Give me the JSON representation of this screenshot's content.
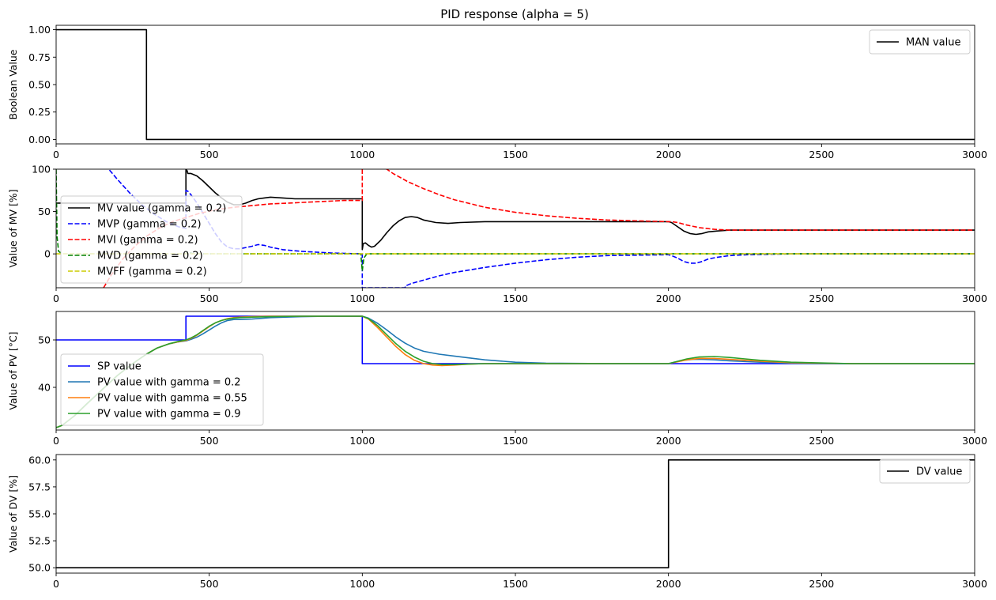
{
  "chart_data": {
    "type": "line",
    "title": "PID response (alpha = 5)",
    "panels": [
      {
        "ylabel": "Boolean Value",
        "xlim": [
          0,
          3000
        ],
        "ylim": [
          -0.04,
          1.04
        ],
        "x_ticks": [
          0,
          500,
          1000,
          1500,
          2000,
          2500,
          3000
        ],
        "y_ticks": [
          0.0,
          0.25,
          0.5,
          0.75,
          1.0
        ],
        "y_tick_labels": [
          "0.00",
          "0.25",
          "0.50",
          "0.75",
          "1.00"
        ],
        "legend_position": "upper right",
        "series": [
          {
            "name": "MAN value",
            "color": "#000000",
            "dash": "solid",
            "x": [
              0,
              295,
              295,
              3000
            ],
            "y": [
              1,
              1,
              0,
              0
            ]
          }
        ]
      },
      {
        "ylabel": "Value of MV [%]",
        "xlim": [
          0,
          3000
        ],
        "ylim": [
          -40,
          100
        ],
        "x_ticks": [
          0,
          500,
          1000,
          1500,
          2000,
          2500,
          3000
        ],
        "y_ticks": [
          0,
          50,
          100
        ],
        "y_tick_labels": [
          "0",
          "50",
          "100"
        ],
        "legend_position": "lower left",
        "series": [
          {
            "name": "MV value (gamma = 0.2)",
            "color": "#000000",
            "dash": "solid",
            "x": [
              0,
              295,
              295,
              424,
              424,
              428,
              430,
              440,
              460,
              480,
              500,
              520,
              540,
              560,
              580,
              600,
              620,
              640,
              660,
              680,
              700,
              740,
              780,
              840,
              900,
              960,
              1000,
              1000,
              1003,
              1010,
              1020,
              1030,
              1040,
              1060,
              1080,
              1100,
              1120,
              1140,
              1160,
              1180,
              1200,
              1240,
              1280,
              1320,
              1400,
              1600,
              1800,
              2000,
              2010,
              2030,
              2050,
              2070,
              2090,
              2110,
              2130,
              2160,
              2200,
              2260,
              2400,
              2600,
              3000
            ],
            "y": [
              60,
              60,
              60,
              60,
              100,
              98,
              95,
              95,
              92,
              86,
              79,
              72,
              66,
              61,
              58,
              58,
              60,
              63,
              65,
              66,
              67,
              66,
              65,
              65,
              65,
              65,
              65,
              5,
              12,
              13,
              10,
              8,
              9,
              16,
              25,
              33,
              39,
              43,
              44,
              43,
              40,
              37,
              36,
              37,
              38,
              38,
              38,
              38,
              37,
              32,
              27,
              24,
              23,
              24,
              26,
              27,
              28,
              28,
              28,
              28,
              28
            ]
          },
          {
            "name": "MVP (gamma = 0.2)",
            "color": "#0000ff",
            "dash": "dashed",
            "x": [
              160,
              200,
              240,
              280,
              320,
              360,
              400,
              424,
              424,
              430,
              440,
              460,
              480,
              500,
              520,
              540,
              560,
              580,
              600,
              640,
              660,
              680,
              700,
              740,
              800,
              900,
              1000,
              1000,
              1040,
              1080,
              1100,
              1140,
              1140,
              1160,
              1200,
              1250,
              1300,
              1400,
              1500,
              1600,
              1700,
              1800,
              2000,
              2010,
              2030,
              2050,
              2070,
              2090,
              2110,
              2130,
              2160,
              2200,
              2260,
              2400,
              2600,
              3000
            ],
            "y": [
              105,
              88,
              72,
              58,
              47,
              38,
              32,
              30,
              75,
              74,
              70,
              60,
              48,
              36,
              24,
              14,
              8,
              6,
              6,
              9,
              11,
              10,
              8,
              5,
              3,
              1,
              0,
              -40,
              -40,
              -40,
              -40,
              -40,
              -38,
              -35,
              -31,
              -26,
              -22,
              -16,
              -11,
              -7,
              -4,
              -2,
              -1,
              -2,
              -5,
              -9,
              -11,
              -11,
              -9,
              -6,
              -4,
              -2,
              -1,
              0,
              0,
              0
            ]
          },
          {
            "name": "MVI (gamma = 0.2)",
            "color": "#ff0000",
            "dash": "dashed",
            "x": [
              155,
              180,
              220,
              260,
              300,
              340,
              380,
              424,
              470,
              520,
              580,
              640,
              700,
              760,
              820,
              880,
              940,
              1000,
              1000,
              1010,
              1020,
              1050,
              1080,
              1100,
              1150,
              1200,
              1250,
              1300,
              1400,
              1500,
              1600,
              1700,
              1800,
              1900,
              2000,
              2010,
              2030,
              2060,
              2100,
              2150,
              2200,
              2300,
              2400,
              2600,
              3000
            ],
            "y": [
              -40,
              -25,
              -5,
              10,
              22,
              31,
              38,
              43,
              48,
              52,
              55,
              57,
              59,
              60,
              61,
              62,
              63,
              63,
              100,
              110,
              120,
              106,
              100,
              95,
              85,
              77,
              70,
              64,
              55,
              49,
              45,
              42,
              40,
              39,
              38,
              38,
              37,
              34,
              31,
              29,
              28,
              28,
              28,
              28,
              28
            ]
          },
          {
            "name": "MVD (gamma = 0.2)",
            "color": "#008000",
            "dash": "dashed",
            "x": [
              0,
              3,
              8,
              20,
              424,
              430,
              450,
              995,
              1000,
              1005,
              1015,
              1030,
              2000,
              3000
            ],
            "y": [
              100,
              20,
              3,
              0,
              0,
              2,
              0,
              0,
              -20,
              -5,
              0,
              0,
              0,
              0
            ]
          },
          {
            "name": "MVFF (gamma = 0.2)",
            "color": "#cccc00",
            "dash": "dashed",
            "x": [
              0,
              3000
            ],
            "y": [
              0,
              0
            ]
          }
        ]
      },
      {
        "ylabel": "Value of PV [°C]",
        "xlim": [
          0,
          3000
        ],
        "ylim": [
          31,
          56
        ],
        "x_ticks": [
          0,
          500,
          1000,
          1500,
          2000,
          2500,
          3000
        ],
        "y_ticks": [
          40,
          50
        ],
        "y_tick_labels": [
          "40",
          "50"
        ],
        "legend_position": "lower left",
        "series": [
          {
            "name": "SP value",
            "color": "#0000ff",
            "dash": "solid",
            "x": [
              0,
              424,
              424,
              1000,
              1000,
              3000
            ],
            "y": [
              50,
              50,
              55,
              55,
              45,
              45
            ]
          },
          {
            "name": "PV value with gamma = 0.2",
            "color": "#1f77b4",
            "dash": "solid",
            "x": [
              0,
              20,
              60,
              100,
              150,
              200,
              250,
              295,
              330,
              370,
              400,
              424,
              440,
              460,
              480,
              500,
              520,
              540,
              560,
              580,
              600,
              640,
              700,
              800,
              900,
              1000,
              1020,
              1050,
              1080,
              1110,
              1140,
              1170,
              1200,
              1250,
              1300,
              1400,
              1500,
              1600,
              1800,
              2000,
              2020,
              2050,
              2080,
              2110,
              2150,
              2200,
              2300,
              2400,
              2500,
              2700,
              3000
            ],
            "y": [
              31.5,
              32,
              34,
              36.5,
              39.5,
              42.5,
              45,
              47,
              48.3,
              49.2,
              49.6,
              49.8,
              50.1,
              50.6,
              51.3,
              52.1,
              52.9,
              53.6,
              54.1,
              54.3,
              54.3,
              54.4,
              54.7,
              54.9,
              55,
              55,
              54.6,
              53.5,
              52.1,
              50.6,
              49.3,
              48.3,
              47.6,
              47,
              46.6,
              45.8,
              45.3,
              45.1,
              45,
              45,
              45.3,
              45.7,
              45.9,
              45.9,
              45.8,
              45.6,
              45.3,
              45.1,
              45,
              45,
              45
            ]
          },
          {
            "name": "PV value with gamma = 0.55",
            "color": "#ff7f0e",
            "dash": "solid",
            "x": [
              0,
              20,
              60,
              100,
              150,
              200,
              250,
              295,
              330,
              370,
              400,
              424,
              440,
              460,
              480,
              500,
              520,
              540,
              560,
              580,
              600,
              640,
              700,
              800,
              900,
              1000,
              1020,
              1050,
              1080,
              1110,
              1140,
              1170,
              1200,
              1230,
              1260,
              1300,
              1350,
              1400,
              1500,
              1600,
              1800,
              2000,
              2030,
              2060,
              2100,
              2150,
              2200,
              2300,
              2400,
              2600,
              3000
            ],
            "y": [
              31.5,
              32,
              34,
              36.5,
              39.5,
              42.5,
              45,
              47,
              48.3,
              49.2,
              49.6,
              49.9,
              50.3,
              51,
              51.9,
              52.8,
              53.6,
              54.1,
              54.5,
              54.7,
              54.8,
              54.9,
              55,
              55,
              55,
              55,
              54.4,
              52.6,
              50.6,
              48.6,
              46.9,
              45.7,
              45,
              44.7,
              44.6,
              44.7,
              44.9,
              45,
              45,
              45,
              45,
              45,
              45.4,
              45.8,
              46.1,
              46.1,
              45.9,
              45.5,
              45.2,
              45,
              45
            ]
          },
          {
            "name": "PV value with gamma = 0.9",
            "color": "#2ca02c",
            "dash": "solid",
            "x": [
              0,
              20,
              60,
              100,
              150,
              200,
              250,
              295,
              330,
              370,
              400,
              424,
              440,
              460,
              480,
              500,
              520,
              540,
              560,
              580,
              600,
              640,
              700,
              800,
              900,
              1000,
              1020,
              1050,
              1080,
              1110,
              1140,
              1170,
              1200,
              1230,
              1260,
              1300,
              1350,
              1400,
              1500,
              1600,
              1800,
              2000,
              2030,
              2060,
              2100,
              2150,
              2200,
              2250,
              2300,
              2400,
              2600,
              3000
            ],
            "y": [
              31.5,
              32,
              34,
              36.5,
              39.5,
              42.5,
              45,
              47,
              48.3,
              49.2,
              49.7,
              50,
              50.4,
              51.1,
              52,
              52.9,
              53.6,
              54.1,
              54.4,
              54.6,
              54.7,
              54.8,
              54.9,
              55,
              55,
              55,
              54.5,
              53,
              51.1,
              49.2,
              47.6,
              46.4,
              45.5,
              45,
              44.8,
              44.8,
              44.9,
              45,
              45,
              45,
              45,
              45,
              45.5,
              46,
              46.4,
              46.5,
              46.3,
              46,
              45.7,
              45.3,
              45,
              45
            ]
          }
        ]
      },
      {
        "ylabel": "Value of DV [%]",
        "xlim": [
          0,
          3000
        ],
        "ylim": [
          49.5,
          60.5
        ],
        "x_ticks": [
          0,
          500,
          1000,
          1500,
          2000,
          2500,
          3000
        ],
        "y_ticks": [
          50.0,
          52.5,
          55.0,
          57.5,
          60.0
        ],
        "y_tick_labels": [
          "50.0",
          "52.5",
          "55.0",
          "57.5",
          "60.0"
        ],
        "legend_position": "upper right",
        "series": [
          {
            "name": "DV value",
            "color": "#000000",
            "dash": "solid",
            "x": [
              0,
              2000,
              2000,
              3000
            ],
            "y": [
              50,
              50,
              60,
              60
            ]
          }
        ]
      }
    ]
  }
}
